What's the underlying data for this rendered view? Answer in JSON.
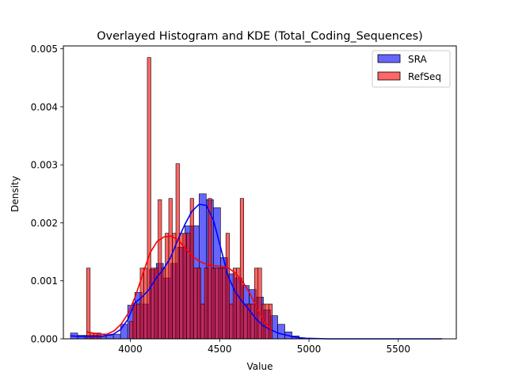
{
  "chart_data": {
    "type": "histogram",
    "title": "Overlayed Histogram and KDE (Total_Coding_Sequences)",
    "xlabel": "Value",
    "ylabel": "Density",
    "xlim": [
      3625,
      5825
    ],
    "ylim": [
      0,
      0.00505
    ],
    "xticks": [
      4000,
      4500,
      5000,
      5500
    ],
    "xtick_labels": [
      "4000",
      "4500",
      "5000",
      "5500"
    ],
    "yticks": [
      0,
      0.001,
      0.002,
      0.003,
      0.004,
      0.005
    ],
    "ytick_labels": [
      "0.000",
      "0.001",
      "0.002",
      "0.003",
      "0.004",
      "0.005"
    ],
    "grid": false,
    "legend": {
      "position": "top-right",
      "entries": [
        "SRA",
        "RefSeq"
      ]
    },
    "series": [
      {
        "name": "SRA",
        "color": "#0000ff",
        "bin_edges": [
          3665,
          3705,
          3745,
          3785,
          3825,
          3865,
          3905,
          3945,
          3985,
          4025,
          4065,
          4105,
          4145,
          4185,
          4225,
          4265,
          4305,
          4345,
          4385,
          4425,
          4465,
          4505,
          4545,
          4585,
          4625,
          4665,
          4705,
          4745,
          4785,
          4825,
          4865,
          4905,
          4945,
          4985,
          5025,
          5065,
          5105,
          5145,
          5185,
          5225,
          5265,
          5305,
          5345,
          5385,
          5425,
          5465,
          5505,
          5545,
          5585,
          5625,
          5665,
          5705,
          5745
        ],
        "densities": [
          0.0001,
          6e-05,
          6e-05,
          6e-05,
          4e-05,
          6e-05,
          8e-05,
          0.00025,
          0.00058,
          0.0008,
          0.0006,
          0.0012,
          0.0013,
          0.00105,
          0.0013,
          0.00158,
          0.00195,
          0.00195,
          0.0025,
          0.0024,
          0.00226,
          0.0014,
          0.00112,
          0.00105,
          0.00092,
          0.00085,
          0.00072,
          0.0005,
          0.0004,
          0.00025,
          0.00012,
          5e-05,
          1e-05,
          0,
          0,
          0,
          0,
          0,
          0,
          0,
          0,
          0,
          0,
          0,
          0,
          0,
          0,
          0,
          0,
          0,
          0,
          0
        ],
        "kde_x": [
          3665,
          3725,
          3785,
          3845,
          3905,
          3945,
          3985,
          4025,
          4065,
          4105,
          4145,
          4185,
          4225,
          4265,
          4305,
          4345,
          4385,
          4425,
          4465,
          4505,
          4545,
          4585,
          4625,
          4665,
          4705,
          4745,
          4785,
          4825,
          4865,
          4905,
          4945,
          4985,
          5045,
          5105,
          5185,
          5265,
          5345,
          5425,
          5505,
          5585,
          5665,
          5745
        ],
        "kde_y": [
          5e-05,
          4e-05,
          4e-05,
          5e-05,
          8e-05,
          0.00016,
          0.00033,
          0.00062,
          0.00072,
          0.00085,
          0.00105,
          0.0012,
          0.0014,
          0.0017,
          0.00197,
          0.0022,
          0.00232,
          0.0023,
          0.00205,
          0.00158,
          0.0011,
          0.00082,
          0.00065,
          0.0005,
          0.00034,
          0.00022,
          0.00016,
          0.0001,
          7e-05,
          4e-05,
          2e-05,
          1e-05,
          5e-06,
          0,
          0,
          0,
          0,
          0,
          0,
          0,
          0,
          0
        ]
      },
      {
        "name": "RefSeq",
        "color": "#ff0000",
        "bin_edges": [
          3755,
          3775,
          3795,
          3815,
          3835,
          3855,
          3875,
          3895,
          3915,
          3935,
          3955,
          3975,
          3995,
          4015,
          4035,
          4055,
          4075,
          4095,
          4115,
          4135,
          4155,
          4175,
          4195,
          4215,
          4235,
          4255,
          4275,
          4295,
          4315,
          4335,
          4355,
          4375,
          4395,
          4415,
          4435,
          4455,
          4475,
          4495,
          4515,
          4535,
          4555,
          4575,
          4595,
          4615,
          4635,
          4655,
          4675,
          4695,
          4715,
          4735,
          4755,
          4775,
          4795
        ],
        "densities": [
          0.00122,
          0.0001,
          0.0001,
          0.0001,
          0,
          0,
          0,
          0,
          0,
          0,
          0,
          0,
          0.0003,
          0.00062,
          0.0006,
          0.00122,
          0.00122,
          0.00485,
          0.00122,
          0.00122,
          0.0024,
          0.00122,
          0.00182,
          0.00242,
          0.00182,
          0.00302,
          0.00182,
          0.00182,
          0.00182,
          0.00242,
          0.00122,
          0.00122,
          0.0006,
          0.00122,
          0.00242,
          0.00122,
          0.00122,
          0.00122,
          0.00122,
          0.00182,
          0.0006,
          0.00122,
          0.00122,
          0.00242,
          0.0006,
          0.0006,
          0.0006,
          0.00122,
          0.00122,
          0.0006,
          0.0006,
          0.0006
        ],
        "kde_x": [
          3755,
          3790,
          3830,
          3870,
          3910,
          3950,
          3990,
          4030,
          4070,
          4110,
          4150,
          4190,
          4230,
          4270,
          4310,
          4350,
          4390,
          4430,
          4470,
          4510,
          4550,
          4590,
          4630,
          4670,
          4710,
          4750,
          4790
        ],
        "kde_y": [
          0.00012,
          0.0001,
          8e-05,
          8e-05,
          0.00014,
          0.00026,
          0.00045,
          0.00075,
          0.00112,
          0.00148,
          0.00168,
          0.00176,
          0.00177,
          0.0017,
          0.00155,
          0.00142,
          0.00133,
          0.00128,
          0.00126,
          0.00125,
          0.00122,
          0.00113,
          0.00098,
          0.00078,
          0.00052,
          0.0003,
          0.00015
        ]
      }
    ]
  }
}
